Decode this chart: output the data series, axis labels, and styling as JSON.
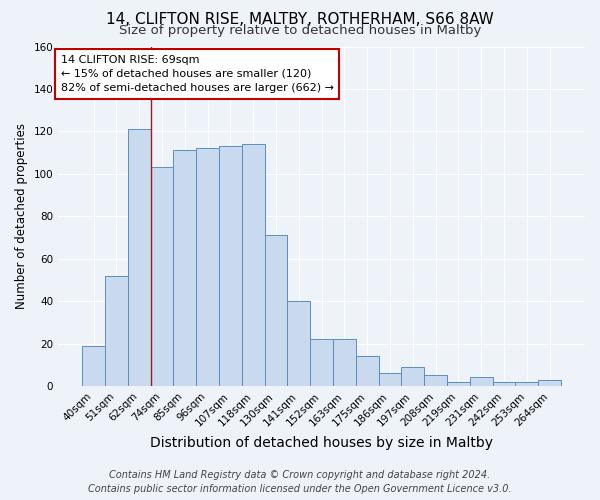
{
  "title": "14, CLIFTON RISE, MALTBY, ROTHERHAM, S66 8AW",
  "subtitle": "Size of property relative to detached houses in Maltby",
  "xlabel": "Distribution of detached houses by size in Maltby",
  "ylabel": "Number of detached properties",
  "bar_labels": [
    "40sqm",
    "51sqm",
    "62sqm",
    "74sqm",
    "85sqm",
    "96sqm",
    "107sqm",
    "118sqm",
    "130sqm",
    "141sqm",
    "152sqm",
    "163sqm",
    "175sqm",
    "186sqm",
    "197sqm",
    "208sqm",
    "219sqm",
    "231sqm",
    "242sqm",
    "253sqm",
    "264sqm"
  ],
  "bar_heights": [
    19,
    52,
    121,
    103,
    111,
    112,
    113,
    114,
    71,
    40,
    22,
    22,
    14,
    6,
    9,
    5,
    2,
    4,
    2,
    2,
    3
  ],
  "bar_color": "#c9d9ee",
  "bar_edge_color": "#5b8ec4",
  "ylim": [
    0,
    160
  ],
  "yticks": [
    0,
    20,
    40,
    60,
    80,
    100,
    120,
    140,
    160
  ],
  "vline_position": 2.5,
  "vline_color": "#9b1c1c",
  "annotation_title": "14 CLIFTON RISE: 69sqm",
  "annotation_line1": "← 15% of detached houses are smaller (120)",
  "annotation_line2": "82% of semi-detached houses are larger (662) →",
  "annotation_box_color": "#c00000",
  "footer1": "Contains HM Land Registry data © Crown copyright and database right 2024.",
  "footer2": "Contains public sector information licensed under the Open Government Licence v3.0.",
  "title_fontsize": 11,
  "subtitle_fontsize": 9.5,
  "xlabel_fontsize": 10,
  "ylabel_fontsize": 8.5,
  "tick_fontsize": 7.5,
  "annotation_fontsize": 8,
  "footer_fontsize": 7,
  "background_color": "#eef2f9"
}
